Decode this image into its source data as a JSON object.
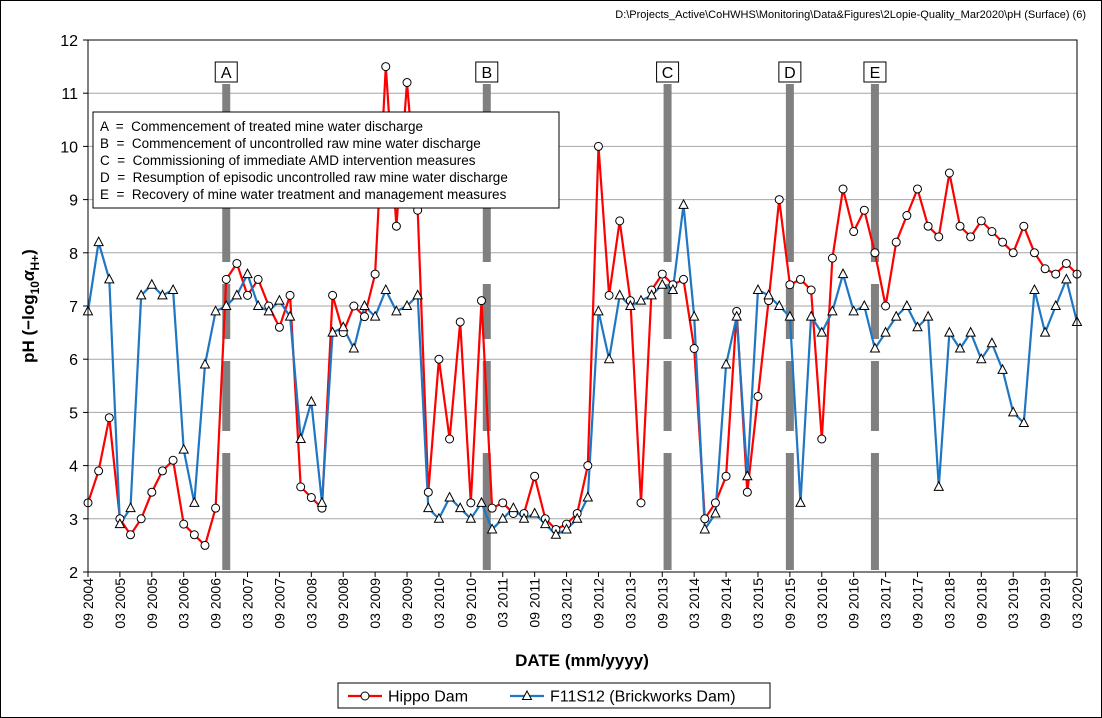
{
  "chart_data": {
    "type": "line",
    "source": "D:\\Projects_Active\\CoHWHS\\Monitoring\\Data&Figures\\2Lopie-Quality_Mar2020\\pH  (Surface) (6)",
    "x_label": "DATE  (mm/yyyy)",
    "y_label_parts": [
      "pH  (−log",
      "10",
      "α",
      "H+",
      ")"
    ],
    "x": [
      "2004-09",
      "2004-11",
      "2005-01",
      "2005-03",
      "2005-05",
      "2005-07",
      "2005-09",
      "2005-11",
      "2006-01",
      "2006-03",
      "2006-05",
      "2006-07",
      "2006-09",
      "2006-11",
      "2007-01",
      "2007-03",
      "2007-05",
      "2007-07",
      "2007-09",
      "2007-11",
      "2008-01",
      "2008-03",
      "2008-05",
      "2008-07",
      "2008-09",
      "2008-11",
      "2009-01",
      "2009-03",
      "2009-05",
      "2009-07",
      "2009-09",
      "2009-11",
      "2010-01",
      "2010-03",
      "2010-05",
      "2010-07",
      "2010-09",
      "2010-11",
      "2011-01",
      "2011-03",
      "2011-05",
      "2011-07",
      "2011-09",
      "2011-11",
      "2012-01",
      "2012-03",
      "2012-05",
      "2012-07",
      "2012-09",
      "2012-11",
      "2013-01",
      "2013-03",
      "2013-05",
      "2013-07",
      "2013-09",
      "2013-11",
      "2014-01",
      "2014-03",
      "2014-05",
      "2014-07",
      "2014-09",
      "2014-11",
      "2015-01",
      "2015-03",
      "2015-05",
      "2015-07",
      "2015-09",
      "2015-11",
      "2016-01",
      "2016-03",
      "2016-05",
      "2016-07",
      "2016-09",
      "2016-11",
      "2017-01",
      "2017-03",
      "2017-05",
      "2017-07",
      "2017-09",
      "2017-11",
      "2018-01",
      "2018-03",
      "2018-05",
      "2018-07",
      "2018-09",
      "2018-11",
      "2019-01",
      "2019-03",
      "2019-05",
      "2019-07",
      "2019-09",
      "2019-11",
      "2020-01",
      "2020-03"
    ],
    "series": [
      {
        "name": "Hippo Dam",
        "color": "#ff0000",
        "marker": "circle",
        "values": [
          3.3,
          3.9,
          4.9,
          3.0,
          2.7,
          3.0,
          3.5,
          3.9,
          4.1,
          2.9,
          2.7,
          2.5,
          3.2,
          7.5,
          7.8,
          7.2,
          7.5,
          7.0,
          6.6,
          7.2,
          3.6,
          3.4,
          3.2,
          7.2,
          6.5,
          7.0,
          6.8,
          7.6,
          11.5,
          8.5,
          11.2,
          8.8,
          3.5,
          6.0,
          4.5,
          6.7,
          3.3,
          7.1,
          3.2,
          3.3,
          3.1,
          3.1,
          3.8,
          3.0,
          2.8,
          2.9,
          3.1,
          4.0,
          10.0,
          7.2,
          8.6,
          7.1,
          3.3,
          7.3,
          7.6,
          7.4,
          7.5,
          6.2,
          3.0,
          3.3,
          3.8,
          6.9,
          3.5,
          5.3,
          7.1,
          9.0,
          7.4,
          7.5,
          7.3,
          4.5,
          7.9,
          9.2,
          8.4,
          8.8,
          8.0,
          7.0,
          8.2,
          8.7,
          9.2,
          8.5,
          8.3,
          9.5,
          8.5,
          8.3,
          8.6,
          8.4,
          8.2,
          8.0,
          8.5,
          8.0,
          7.7,
          7.6,
          7.8,
          7.6
        ]
      },
      {
        "name": "F11S12 (Brickworks Dam)",
        "color": "#1f77c4",
        "marker": "triangle",
        "values": [
          6.9,
          8.2,
          7.5,
          2.9,
          3.2,
          7.2,
          7.4,
          7.2,
          7.3,
          4.3,
          3.3,
          5.9,
          6.9,
          7.0,
          7.2,
          7.6,
          7.0,
          6.9,
          7.1,
          6.8,
          4.5,
          5.2,
          3.3,
          6.5,
          6.6,
          6.2,
          7.0,
          6.8,
          7.3,
          6.9,
          7.0,
          7.2,
          3.2,
          3.0,
          3.4,
          3.2,
          3.0,
          3.3,
          2.8,
          3.0,
          3.2,
          3.0,
          3.1,
          2.9,
          2.7,
          2.8,
          3.0,
          3.4,
          6.9,
          6.0,
          7.2,
          7.0,
          7.1,
          7.2,
          7.4,
          7.3,
          8.9,
          6.8,
          2.8,
          3.1,
          5.9,
          6.8,
          3.8,
          7.3,
          7.2,
          7.0,
          6.8,
          3.3,
          6.8,
          6.5,
          6.9,
          7.6,
          6.9,
          7.0,
          6.2,
          6.5,
          6.8,
          7.0,
          6.6,
          6.8,
          3.6,
          6.5,
          6.2,
          6.5,
          6.0,
          6.3,
          5.8,
          5.0,
          4.8,
          7.3,
          6.5,
          7.0,
          7.5,
          6.7
        ]
      }
    ],
    "events": [
      {
        "label": "A",
        "x": "2006-11",
        "note": "A  =  Commencement of treated mine water discharge"
      },
      {
        "label": "B",
        "x": "2010-12",
        "note": "B  =  Commencement of uncontrolled raw mine water discharge"
      },
      {
        "label": "C",
        "x": "2013-10",
        "note": "C  =  Commissioning of immediate AMD intervention measures"
      },
      {
        "label": "D",
        "x": "2015-09",
        "note": "D  =  Resumption of episodic uncontrolled raw mine water discharge"
      },
      {
        "label": "E",
        "x": "2017-01",
        "note": "E  =  Recovery of mine water treatment and management measures"
      }
    ],
    "xlim": [
      "2004-09",
      "2020-03"
    ],
    "xticks": [
      {
        "value": "2004-09",
        "label": "09 2004"
      },
      {
        "value": "2005-03",
        "label": "03 2005"
      },
      {
        "value": "2005-09",
        "label": "09 2005"
      },
      {
        "value": "2006-03",
        "label": "03 2006"
      },
      {
        "value": "2006-09",
        "label": "09 2006"
      },
      {
        "value": "2007-03",
        "label": "03 2007"
      },
      {
        "value": "2007-09",
        "label": "09 2007"
      },
      {
        "value": "2008-03",
        "label": "03 2008"
      },
      {
        "value": "2008-09",
        "label": "09 2008"
      },
      {
        "value": "2009-03",
        "label": "03 2009"
      },
      {
        "value": "2009-09",
        "label": "09 2009"
      },
      {
        "value": "2010-03",
        "label": "03 2010"
      },
      {
        "value": "2010-09",
        "label": "09 2010"
      },
      {
        "value": "2011-03",
        "label": "03 2011"
      },
      {
        "value": "2011-09",
        "label": "09 2011"
      },
      {
        "value": "2012-03",
        "label": "03 2012"
      },
      {
        "value": "2012-09",
        "label": "09 2012"
      },
      {
        "value": "2013-03",
        "label": "03 2013"
      },
      {
        "value": "2013-09",
        "label": "09 2013"
      },
      {
        "value": "2014-03",
        "label": "03 2014"
      },
      {
        "value": "2014-09",
        "label": "09 2014"
      },
      {
        "value": "2015-03",
        "label": "03 2015"
      },
      {
        "value": "2015-09",
        "label": "09 2015"
      },
      {
        "value": "2016-03",
        "label": "03 2016"
      },
      {
        "value": "2016-09",
        "label": "09 2016"
      },
      {
        "value": "2017-03",
        "label": "03 2017"
      },
      {
        "value": "2017-09",
        "label": "09 2017"
      },
      {
        "value": "2018-03",
        "label": "03 2018"
      },
      {
        "value": "2018-09",
        "label": "09 2018"
      },
      {
        "value": "2019-03",
        "label": "03 2019"
      },
      {
        "value": "2019-09",
        "label": "09 2019"
      },
      {
        "value": "2020-03",
        "label": "03 2020"
      }
    ],
    "ylim": [
      2,
      12
    ],
    "yticks": [
      2,
      3,
      4,
      5,
      6,
      7,
      8,
      9,
      10,
      11,
      12
    ],
    "grid": true
  }
}
